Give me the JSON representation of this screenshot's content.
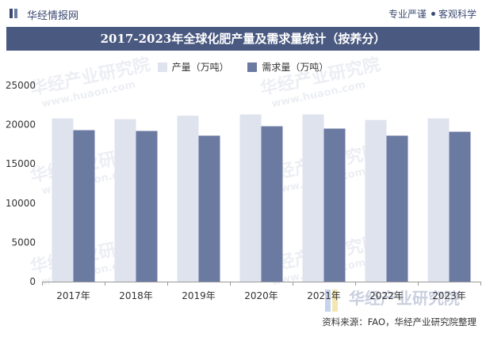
{
  "header": {
    "logo_text": "华经情报网",
    "tagline_left": "专业严谨",
    "tagline_right": "客观科学"
  },
  "watermark": {
    "text": "华经产业研究院",
    "url": "www.huaon.com"
  },
  "footer": {
    "source": "资料来源：FAO，华经产业研究院整理"
  },
  "colors": {
    "production": "#dfe3ee",
    "demand": "#6b7aa1",
    "title_bg": "#4a5980",
    "brand": "#3b4a72"
  },
  "chart_data": {
    "type": "bar",
    "title": "2017-2023年全球化肥产量及需求量统计（按养分）",
    "categories": [
      "2017年",
      "2018年",
      "2019年",
      "2020年",
      "2021年",
      "2022年",
      "2023年"
    ],
    "series": [
      {
        "name": "产量（万吨）",
        "values": [
          20800,
          20700,
          21150,
          21300,
          21300,
          20600,
          20800
        ]
      },
      {
        "name": "需求量（万吨）",
        "values": [
          19300,
          19200,
          18600,
          19800,
          19500,
          18600,
          19100
        ]
      }
    ],
    "ylim": [
      0,
      25000
    ],
    "yticks": [
      0,
      5000,
      10000,
      15000,
      20000,
      25000
    ],
    "legend": "top-center",
    "grid": false
  }
}
